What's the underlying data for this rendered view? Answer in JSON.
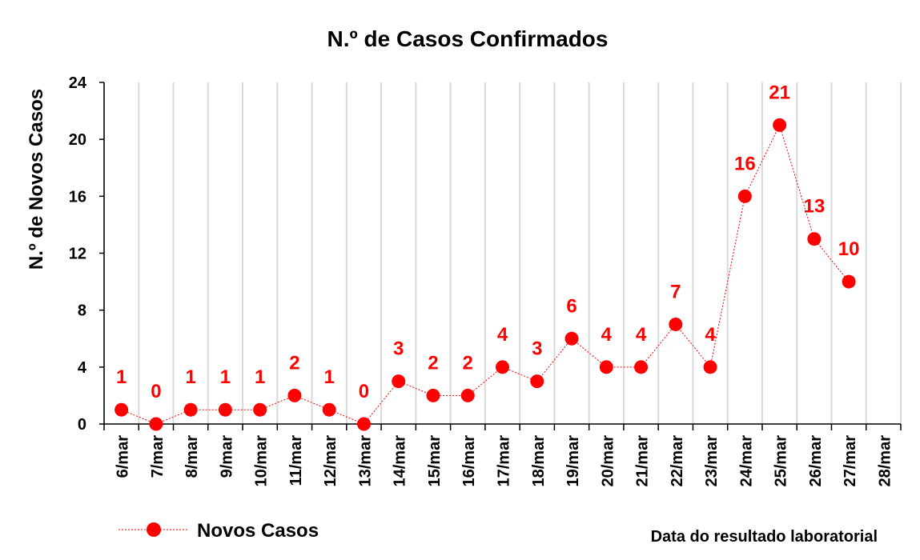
{
  "chart_data": {
    "type": "line",
    "title": "N.º de Casos Confirmados",
    "ylabel": "N.º de Novos Casos",
    "xlabel": "Data do resultado laboratorial",
    "categories": [
      "6/mar",
      "7/mar",
      "8/mar",
      "9/mar",
      "10/mar",
      "11/mar",
      "12/mar",
      "13/mar",
      "14/mar",
      "15/mar",
      "16/mar",
      "17/mar",
      "18/mar",
      "19/mar",
      "20/mar",
      "21/mar",
      "22/mar",
      "23/mar",
      "24/mar",
      "25/mar",
      "26/mar",
      "27/mar",
      "28/mar"
    ],
    "series": [
      {
        "name": "Novos Casos",
        "values": [
          1,
          0,
          1,
          1,
          1,
          2,
          1,
          0,
          3,
          2,
          2,
          4,
          3,
          6,
          4,
          4,
          7,
          4,
          16,
          21,
          13,
          10,
          null
        ]
      }
    ],
    "ylim": [
      0,
      24
    ],
    "yticks": [
      0,
      4,
      8,
      12,
      16,
      20,
      24
    ],
    "grid": "vertical",
    "legend": "bottom-left",
    "colors": {
      "series": "#ff0000",
      "grid": "#d9d9d9",
      "axis": "#000000"
    }
  }
}
